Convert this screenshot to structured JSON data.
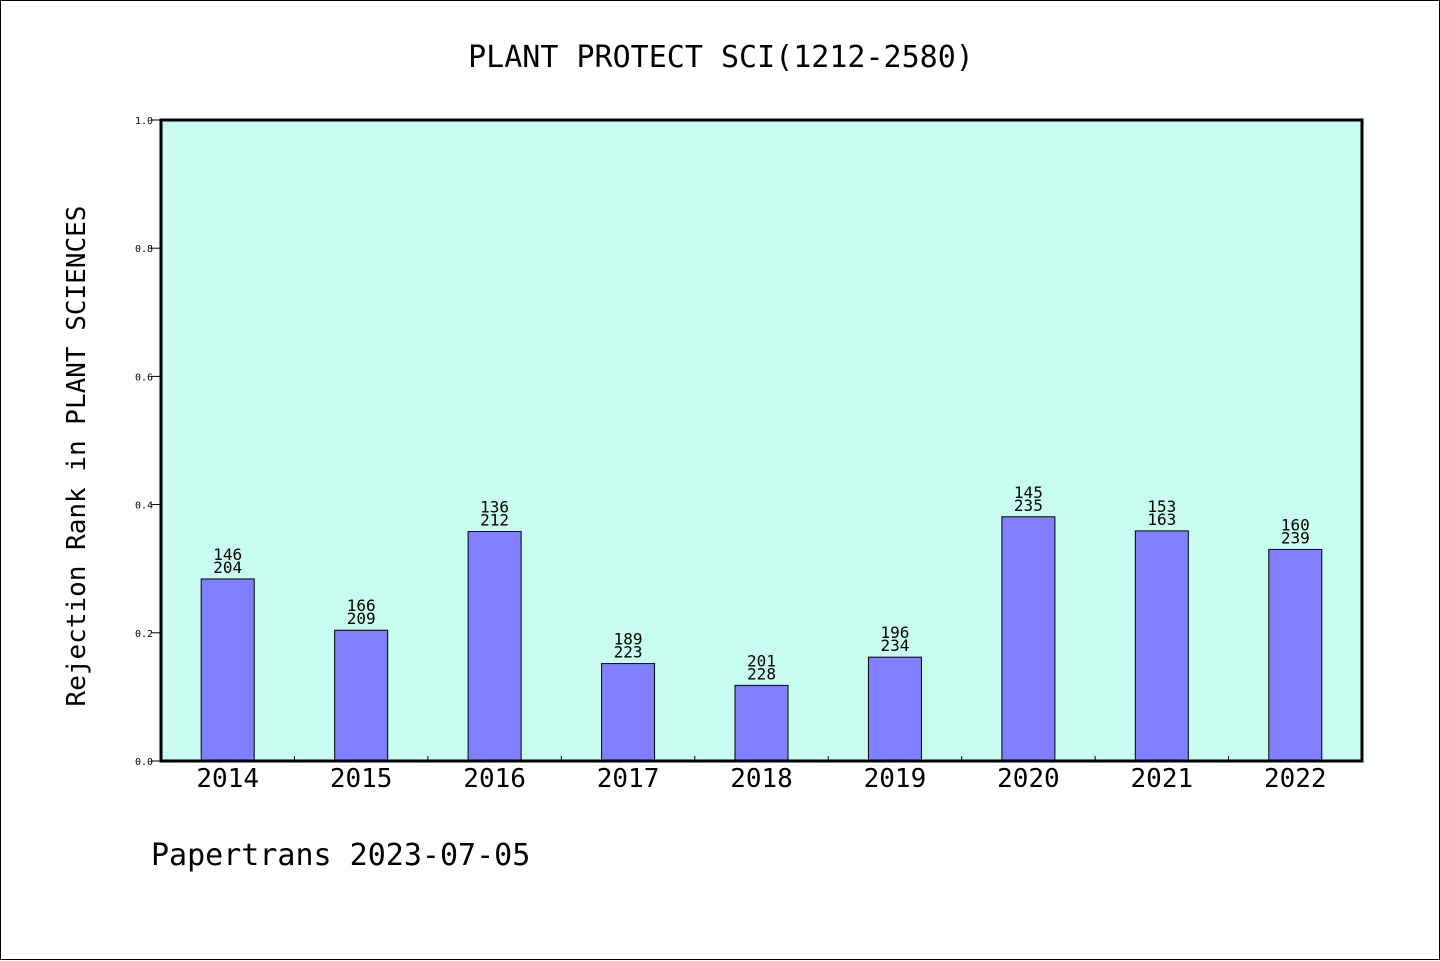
{
  "chart_data": {
    "type": "bar",
    "title": "PLANT PROTECT SCI(1212-2580)",
    "xlabel": "",
    "ylabel": "Rejection Rank in PLANT SCIENCES",
    "ylim": [
      0,
      1.0
    ],
    "yticks": [
      "0.0",
      "0.2",
      "0.4",
      "0.6",
      "0.8",
      "1.0"
    ],
    "categories": [
      "2014",
      "2015",
      "2016",
      "2017",
      "2018",
      "2019",
      "2020",
      "2021",
      "2022"
    ],
    "values": [
      0.284,
      0.204,
      0.358,
      0.152,
      0.118,
      0.162,
      0.381,
      0.359,
      0.33
    ],
    "label_top": [
      "146",
      "166",
      "136",
      "189",
      "201",
      "196",
      "145",
      "153",
      "160"
    ],
    "label_bottom": [
      "204",
      "209",
      "212",
      "223",
      "228",
      "234",
      "235",
      "163",
      "239"
    ],
    "grid": false,
    "legend": "none",
    "colors": {
      "plot_background": "#c8fcee",
      "bar_fill": "#8080ff",
      "bar_stroke": "#000000",
      "axis": "#000000"
    }
  },
  "footer": "Papertrans 2023-07-05"
}
